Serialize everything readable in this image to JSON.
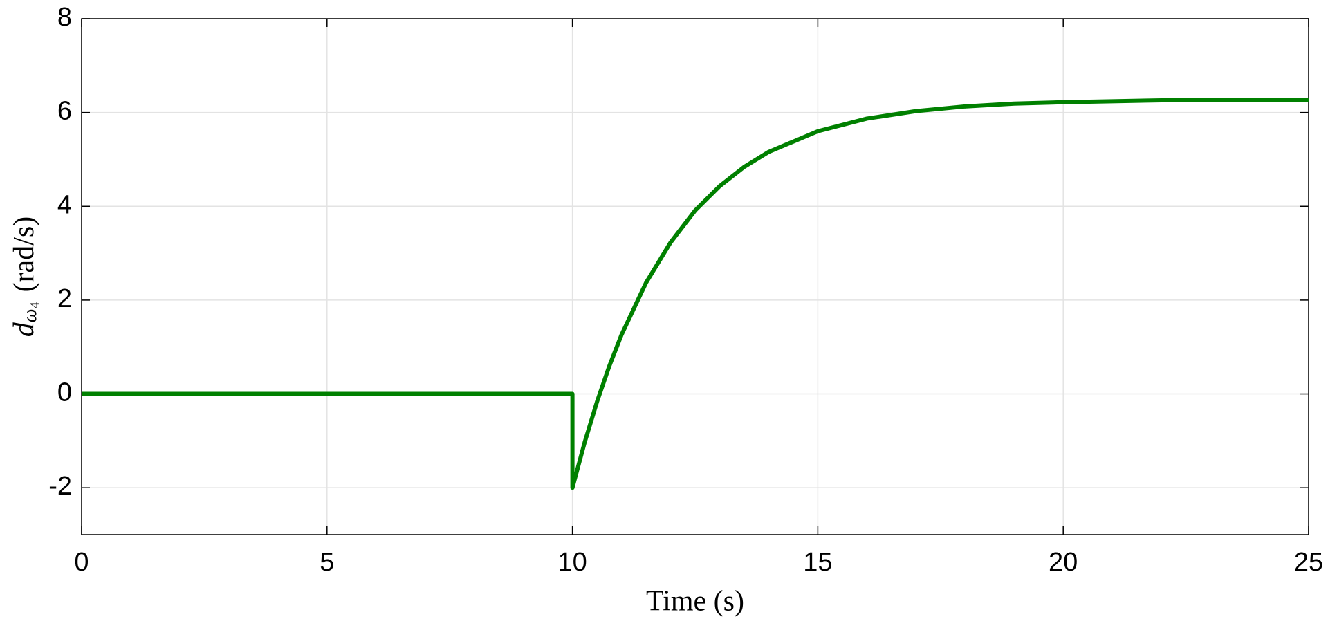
{
  "chart_data": {
    "type": "line",
    "x_label": "Time (s)",
    "y_label": {
      "symbol": "d",
      "subscript": "ω",
      "sub_subscript": "4",
      "unit": "(rad/s)"
    },
    "x": [
      0,
      10,
      10,
      10.25,
      10.5,
      10.75,
      11,
      11.5,
      12,
      12.5,
      13,
      13.5,
      14,
      15,
      16,
      17,
      18,
      19,
      20,
      22,
      25
    ],
    "series": [
      {
        "color": "#008000",
        "values": [
          0,
          0,
          -2,
          -1.03,
          -0.17,
          0.59,
          1.26,
          2.37,
          3.23,
          3.91,
          4.43,
          4.84,
          5.16,
          5.6,
          5.87,
          6.03,
          6.13,
          6.19,
          6.22,
          6.26,
          6.27
        ]
      }
    ],
    "xlim": [
      0,
      25
    ],
    "xticks": [
      0,
      5,
      10,
      15,
      20,
      25
    ],
    "ylim": [
      -3,
      8
    ],
    "yticks": [
      -2,
      0,
      2,
      4,
      6,
      8
    ],
    "grid": true
  }
}
